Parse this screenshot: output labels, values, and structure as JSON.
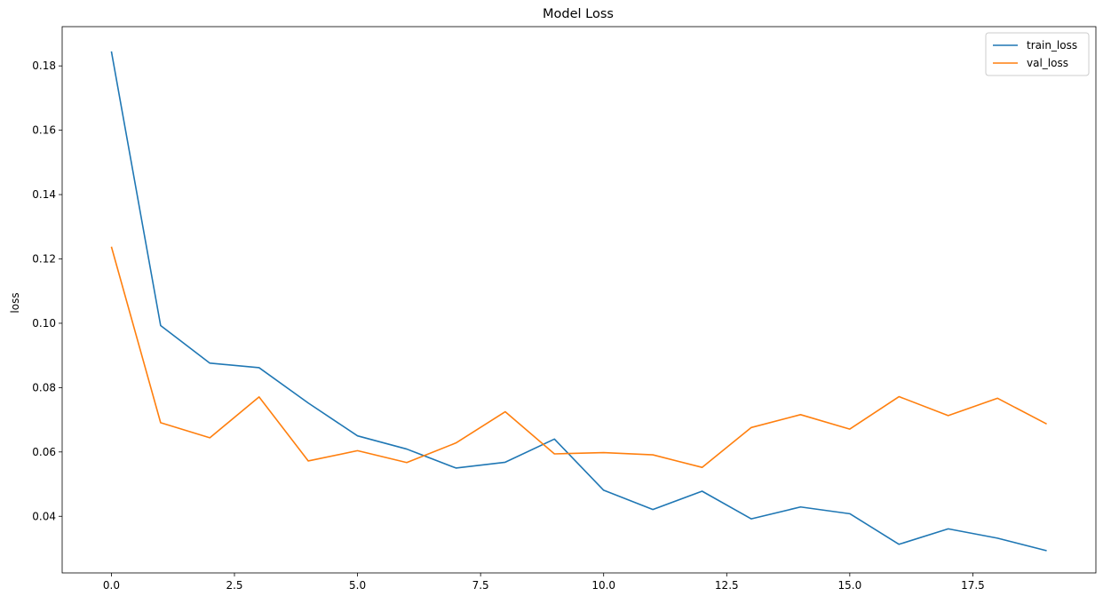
{
  "chart_data": {
    "type": "line",
    "title": "Model Loss",
    "xlabel": "",
    "ylabel": "loss",
    "x": [
      0,
      1,
      2,
      3,
      4,
      5,
      6,
      7,
      8,
      9,
      10,
      11,
      12,
      13,
      14,
      15,
      16,
      17,
      18,
      19
    ],
    "xlim": [
      -1.0,
      20.0
    ],
    "ylim": [
      0.0224,
      0.1922
    ],
    "xticks": [
      0.0,
      2.5,
      5.0,
      7.5,
      10.0,
      12.5,
      15.0,
      17.5
    ],
    "xtick_labels": [
      "0.0",
      "2.5",
      "5.0",
      "7.5",
      "10.0",
      "12.5",
      "15.0",
      "17.5"
    ],
    "yticks": [
      0.04,
      0.06,
      0.08,
      0.1,
      0.12,
      0.14,
      0.16,
      0.18
    ],
    "ytick_labels": [
      "0.04",
      "0.06",
      "0.08",
      "0.10",
      "0.12",
      "0.14",
      "0.16",
      "0.18"
    ],
    "grid": false,
    "legend": "top-right",
    "series": [
      {
        "name": "train_loss",
        "color": "#1f77b4",
        "values": [
          0.1845,
          0.0993,
          0.0876,
          0.0862,
          0.0752,
          0.065,
          0.0609,
          0.055,
          0.0568,
          0.064,
          0.0481,
          0.0421,
          0.0478,
          0.0392,
          0.0429,
          0.0408,
          0.0313,
          0.0361,
          0.0332,
          0.0293
        ]
      },
      {
        "name": "val_loss",
        "color": "#ff7f0e",
        "values": [
          0.1238,
          0.0691,
          0.0644,
          0.0771,
          0.0572,
          0.0604,
          0.0567,
          0.0628,
          0.0725,
          0.0594,
          0.0598,
          0.0591,
          0.0552,
          0.0676,
          0.0716,
          0.0671,
          0.0772,
          0.0713,
          0.0767,
          0.0687
        ]
      }
    ]
  }
}
